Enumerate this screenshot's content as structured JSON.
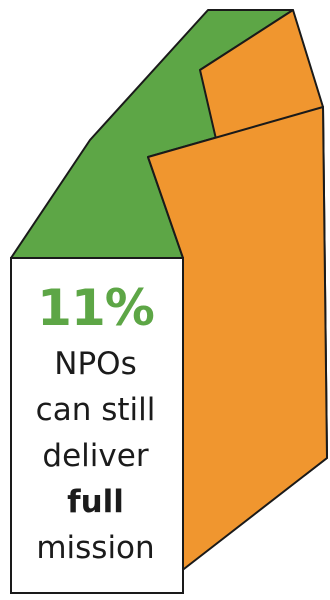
{
  "colors": {
    "green": "#5da646",
    "orange": "#f0962f",
    "outline": "#1a1a1a",
    "text": "#1b1b1b",
    "card": "#ffffff"
  },
  "stat": {
    "value": "11%"
  },
  "caption": {
    "line1": "NPOs",
    "line2": "can still",
    "line3": "deliver",
    "line4": "full",
    "line5": "mission"
  }
}
